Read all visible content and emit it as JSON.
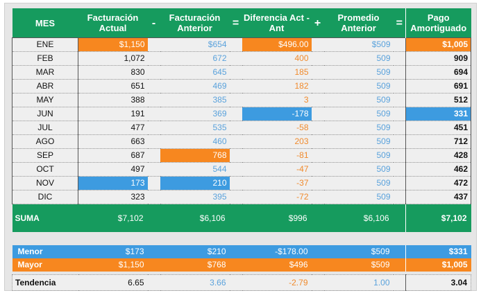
{
  "headers": {
    "mes": "MES",
    "actual": "Facturación Actual",
    "op1": "-",
    "anterior": "Facturación Anterior",
    "op2": "=",
    "diferencia": "Diferencia Act - Ant",
    "op3": "+",
    "promedio": "Promedio Anterior",
    "op4": "=",
    "pago": "Pago Amortiguado"
  },
  "rows": [
    {
      "mes": "ENE",
      "actual": "$1,150",
      "anterior": "$654",
      "diferencia": "$496.00",
      "promedio": "$509",
      "pago": "$1,005"
    },
    {
      "mes": "FEB",
      "actual": "1,072",
      "anterior": "672",
      "diferencia": "400",
      "promedio": "509",
      "pago": "909"
    },
    {
      "mes": "MAR",
      "actual": "830",
      "anterior": "645",
      "diferencia": "185",
      "promedio": "509",
      "pago": "694"
    },
    {
      "mes": "ABR",
      "actual": "651",
      "anterior": "469",
      "diferencia": "182",
      "promedio": "509",
      "pago": "691"
    },
    {
      "mes": "MAY",
      "actual": "388",
      "anterior": "385",
      "diferencia": "3",
      "promedio": "509",
      "pago": "512"
    },
    {
      "mes": "JUN",
      "actual": "191",
      "anterior": "369",
      "diferencia": "-178",
      "promedio": "509",
      "pago": "331"
    },
    {
      "mes": "JUL",
      "actual": "477",
      "anterior": "535",
      "diferencia": "-58",
      "promedio": "509",
      "pago": "451"
    },
    {
      "mes": "AGO",
      "actual": "663",
      "anterior": "460",
      "diferencia": "203",
      "promedio": "509",
      "pago": "712"
    },
    {
      "mes": "SEP",
      "actual": "687",
      "anterior": "768",
      "diferencia": "-81",
      "promedio": "509",
      "pago": "428"
    },
    {
      "mes": "OCT",
      "actual": "497",
      "anterior": "544",
      "diferencia": "-47",
      "promedio": "509",
      "pago": "462"
    },
    {
      "mes": "NOV",
      "actual": "173",
      "anterior": "210",
      "diferencia": "-37",
      "promedio": "509",
      "pago": "472"
    },
    {
      "mes": "DIC",
      "actual": "323",
      "anterior": "395",
      "diferencia": "-72",
      "promedio": "509",
      "pago": "437"
    }
  ],
  "suma": {
    "label": "SUMA",
    "actual": "$7,102",
    "anterior": "$6,106",
    "diferencia": "$996",
    "promedio": "$6,106",
    "pago": "$7,102"
  },
  "menor": {
    "label": "Menor",
    "actual": "$173",
    "anterior": "$210",
    "diferencia": "-$178.00",
    "promedio": "$509",
    "pago": "$331"
  },
  "mayor": {
    "label": "Mayor",
    "actual": "$1,150",
    "anterior": "$768",
    "diferencia": "$496",
    "promedio": "$509",
    "pago": "$1,005"
  },
  "tendencia": {
    "label": "Tendencia",
    "actual": "6.65",
    "anterior": "3.66",
    "diferencia": "-2.79",
    "promedio": "1.00",
    "pago": "3.04"
  },
  "colors": {
    "header_green": "#169b5e",
    "highlight_orange": "#f7871f",
    "highlight_blue": "#3d9be0",
    "value_blue": "#5aa2dc",
    "value_orange": "#f08a2c"
  }
}
